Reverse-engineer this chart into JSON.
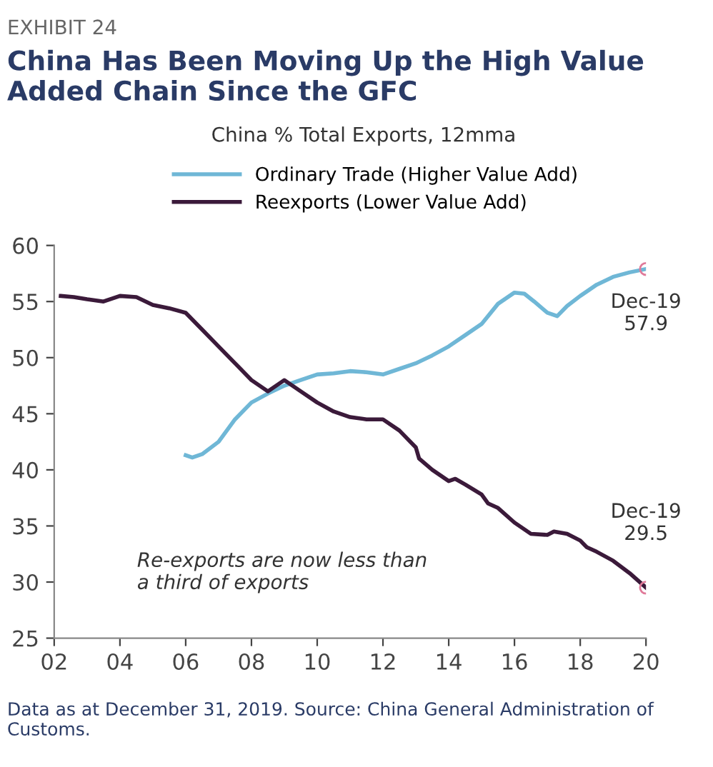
{
  "chart_data": {
    "type": "line",
    "title": "China Has Been Moving Up the High Value\nAdded Chain Since the GFC",
    "subtitle": "China % Total Exports, 12mma",
    "x": [
      2006,
      2006.2,
      2006.5,
      2007,
      2007.5,
      2008,
      2008.5,
      2009,
      2009.5,
      2010,
      2010.5,
      2011,
      2011.5,
      2012,
      2012.5,
      2013,
      2013.5,
      2014,
      2014.5,
      2015,
      2015.5,
      2016,
      2016.3,
      2016.6,
      2017,
      2017.3,
      2017.6,
      2018,
      2018.2,
      2018.5,
      2019,
      2019.5,
      2020
    ],
    "series": [
      {
        "name": "Ordinary Trade (Higher Value Add)",
        "color": "#6fb7d6",
        "values": [
          41.3,
          41.1,
          41.4,
          42.5,
          44.5,
          46.0,
          46.8,
          47.5,
          48.0,
          48.5,
          48.6,
          48.8,
          48.7,
          48.5,
          49.0,
          49.5,
          50.2,
          51.0,
          52.0,
          53.0,
          54.8,
          55.8,
          55.7,
          55.0,
          54.0,
          53.7,
          54.6,
          55.5,
          55.9,
          56.5,
          57.2,
          57.6,
          57.9
        ]
      },
      {
        "name": "Reexports (Lower Value Add)",
        "color": "#3b1a3a",
        "x": [
          2002.2,
          2002.6,
          2003,
          2003.5,
          2004,
          2004.5,
          2005,
          2005.5,
          2006,
          2006.5,
          2007,
          2007.5,
          2008,
          2008.5,
          2009,
          2009.5,
          2010,
          2010.5,
          2011,
          2011.5,
          2012,
          2012.5,
          2013,
          2013.1,
          2013.5,
          2014,
          2014.2,
          2014.5,
          2015,
          2015.2,
          2015.5,
          2016,
          2016.5,
          2017,
          2017.2,
          2017.6,
          2018,
          2018.2,
          2018.5,
          2019,
          2019.5,
          2020
        ],
        "values": [
          55.5,
          55.4,
          55.2,
          55.0,
          55.5,
          55.4,
          54.7,
          54.4,
          54.0,
          52.5,
          51.0,
          49.5,
          48.0,
          47.0,
          48.0,
          47.0,
          46.0,
          45.2,
          44.7,
          44.5,
          44.5,
          43.5,
          42.0,
          41.0,
          40.0,
          39.0,
          39.2,
          38.7,
          37.8,
          37.0,
          36.6,
          35.3,
          34.3,
          34.2,
          34.5,
          34.3,
          33.7,
          33.1,
          32.7,
          31.9,
          30.8,
          29.5
        ]
      }
    ],
    "xlim": [
      2002,
      2020
    ],
    "xticks": [
      {
        "value": 2002,
        "label": "02"
      },
      {
        "value": 2004,
        "label": "04"
      },
      {
        "value": 2006,
        "label": "06"
      },
      {
        "value": 2008,
        "label": "08"
      },
      {
        "value": 2010,
        "label": "10"
      },
      {
        "value": 2012,
        "label": "12"
      },
      {
        "value": 2014,
        "label": "14"
      },
      {
        "value": 2016,
        "label": "16"
      },
      {
        "value": 2018,
        "label": "18"
      },
      {
        "value": 2020,
        "label": "20"
      }
    ],
    "ylim": [
      25,
      60
    ],
    "yticks": [
      25,
      30,
      35,
      40,
      45,
      50,
      55,
      60
    ],
    "legend": "top",
    "grid": false,
    "annotations": [
      "EXHIBIT 24",
      "Re-exports are now less than\na third of exports",
      {
        "text": "Dec-19\n57.9",
        "x": 2020,
        "y": 57.9
      },
      {
        "text": "Dec-19\n29.5",
        "x": 2020,
        "y": 29.5
      },
      "Data as at December 31, 2019. Source: China General Administration of Customs."
    ]
  }
}
